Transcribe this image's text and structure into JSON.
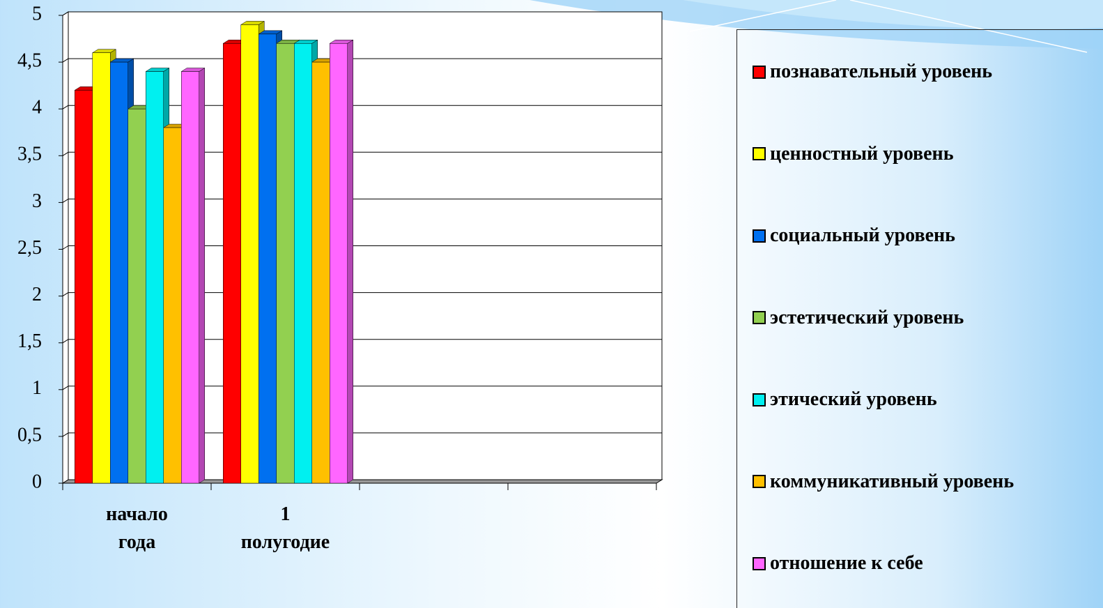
{
  "chart_data": {
    "type": "bar3d",
    "categories": [
      "начало года",
      "1 полугодие",
      null,
      null
    ],
    "series": [
      {
        "name": "познавательный уровень",
        "color": "#ff0000",
        "values": [
          4.2,
          4.7,
          null,
          null
        ]
      },
      {
        "name": "ценностный уровень",
        "color": "#ffff00",
        "values": [
          4.6,
          4.9,
          null,
          null
        ]
      },
      {
        "name": "социальный уровень",
        "color": "#0070f0",
        "values": [
          4.5,
          4.8,
          null,
          null
        ]
      },
      {
        "name": "эстетический уровень",
        "color": "#92d050",
        "values": [
          4.0,
          4.7,
          null,
          null
        ]
      },
      {
        "name": "этический уровень",
        "color": "#00f0f0",
        "values": [
          4.4,
          4.7,
          null,
          null
        ]
      },
      {
        "name": "коммуникативный уровень",
        "color": "#ffc000",
        "values": [
          3.8,
          4.5,
          null,
          null
        ]
      },
      {
        "name": "отношение к себе",
        "color": "#ff66ff",
        "values": [
          4.4,
          4.7,
          null,
          null
        ]
      }
    ],
    "ylim": [
      0,
      5
    ],
    "yticks": [
      0,
      {
        "value": 0.5,
        "label": "0,5"
      },
      1,
      {
        "value": 1.5,
        "label": "1,5"
      },
      2,
      {
        "value": 2.5,
        "label": "2,5"
      },
      3,
      {
        "value": 3.5,
        "label": "3,5"
      },
      4,
      {
        "value": 4.5,
        "label": "4,5"
      },
      5
    ],
    "grid": true,
    "legend": "right"
  }
}
